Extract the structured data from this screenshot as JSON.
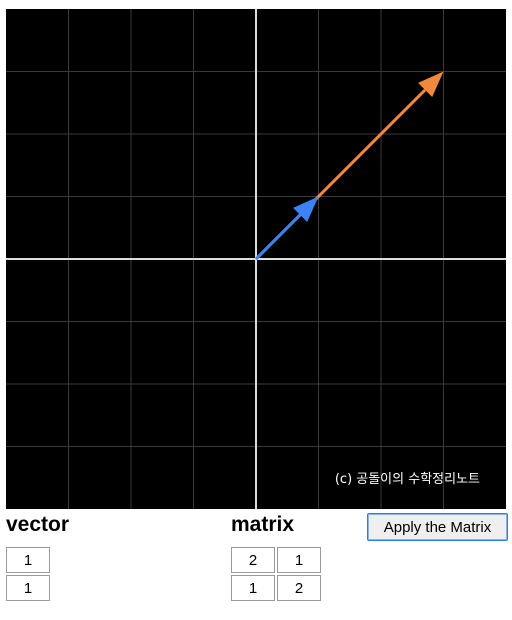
{
  "plot": {
    "watermark": "(c) 공돌이의 수학정리노트",
    "x_range": [
      -4,
      4
    ],
    "y_range": [
      -4,
      4
    ],
    "grid": true,
    "colors": {
      "background": "#000000",
      "grid": "#3a3a3a",
      "axes": "#dcdcdc",
      "input_vector": "#3b82f6",
      "output_vector": "#f0883e"
    },
    "input_vector": [
      1,
      1
    ],
    "output_vector": [
      3,
      3
    ]
  },
  "vector": {
    "label": "vector",
    "values": [
      "1",
      "1"
    ]
  },
  "matrix": {
    "label": "matrix",
    "values": [
      [
        "2",
        "1"
      ],
      [
        "1",
        "2"
      ]
    ]
  },
  "apply_button": {
    "label": "Apply the Matrix"
  }
}
